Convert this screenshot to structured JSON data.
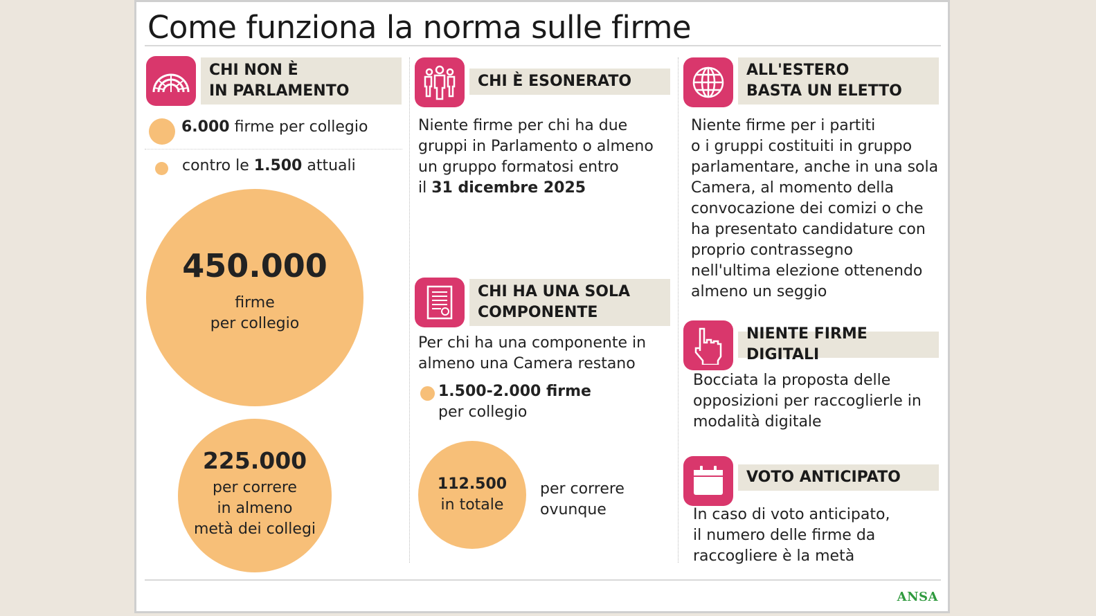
{
  "title": "Come funziona la norma sulle firme",
  "col1": {
    "header": "CHI NON È\nIN PARLAMENTO",
    "icon": "parliament-icon",
    "item1_bold": "6.000",
    "item1_text": " firme per collegio",
    "item2_pre": "contro le ",
    "item2_bold": "1.500",
    "item2_post": " attuali",
    "big_value": "450.000",
    "big_caption": "firme\nper collegio",
    "mid_value": "225.000",
    "mid_caption": "per correre\nin almeno\nmetà dei collegi"
  },
  "col2": {
    "header1": "CHI È ESONERATO",
    "icon1": "people-group-icon",
    "text1_pre": "Niente firme per chi ha due\ngruppi in Parlamento o almeno\nun gruppo formatosi entro\nil ",
    "text1_bold": "31 dicembre 2025",
    "header2": "CHI HA UNA SOLA\nCOMPONENTE",
    "icon2": "document-icon",
    "text2": "Per chi ha una componente in\nalmeno una Camera restano",
    "item_bold": "1.500-2.000 firme",
    "item_text": "per collegio",
    "circle_value": "112.500",
    "circle_caption": "in totale",
    "side_text": "per correre\novunque"
  },
  "col3": {
    "header1": "ALL'ESTERO\nBASTA UN ELETTO",
    "icon1": "globe-icon",
    "text1": "Niente firme per i partiti\no i gruppi costituiti in gruppo\nparlamentare, anche in una sola\nCamera, al momento della\nconvocazione dei comizi o che\nha presentato candidature con\nproprio contrassegno\nnell'ultima elezione ottenendo\nalmeno un seggio",
    "header2": "NIENTE FIRME DIGITALI",
    "icon2": "pointing-hand-icon",
    "text2": "Bocciata la proposta delle\nopposizioni per raccoglierle in\nmodalità digitale",
    "header3": "VOTO ANTICIPATO",
    "icon3": "calendar-icon",
    "text3": "In caso di voto anticipato,\nil numero delle firme da\nraccogliere è la metà"
  },
  "footer": {
    "source": "ANSA"
  },
  "colors": {
    "accent": "#d9376c",
    "circle": "#f7bf78",
    "label_bg": "#e9e5da"
  }
}
